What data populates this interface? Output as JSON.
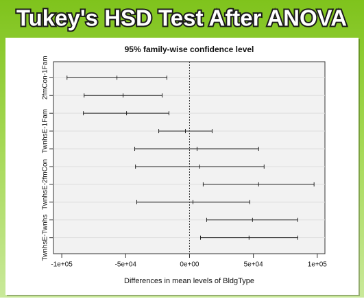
{
  "header": {
    "title": "Tukey's HSD Test After ANOVA"
  },
  "chart_data": {
    "type": "errorbar",
    "title": "95% family-wise confidence level",
    "x_label": "Differences in mean levels of BldgType",
    "categories": [
      "2fmCon-1Fam",
      null,
      null,
      "TwnhsE-1Fam",
      null,
      null,
      "TwnhsE-2fmCon",
      null,
      null,
      "TwnhsE-Twnhs"
    ],
    "lower": [
      -95900,
      -82500,
      -83100,
      -24100,
      -42900,
      -42300,
      10700,
      -41300,
      13400,
      8600
    ],
    "estimate": [
      -56800,
      -52000,
      -49300,
      -3200,
      5900,
      8000,
      54100,
      2700,
      49300,
      46600
    ],
    "upper": [
      -17700,
      -21400,
      -16100,
      17700,
      54100,
      58400,
      97500,
      47200,
      84700,
      84700
    ],
    "color": "#222222",
    "xlim": [
      -106500,
      106000
    ],
    "xticks": [
      {
        "value": -100000,
        "label": "-1e+05"
      },
      {
        "value": -50000,
        "label": "-5e+04"
      },
      {
        "value": 0,
        "label": "0e+00"
      },
      {
        "value": 50000,
        "label": "5e+04"
      },
      {
        "value": 100000,
        "label": "1e+05"
      }
    ],
    "reference_line": 0,
    "grid": true
  }
}
